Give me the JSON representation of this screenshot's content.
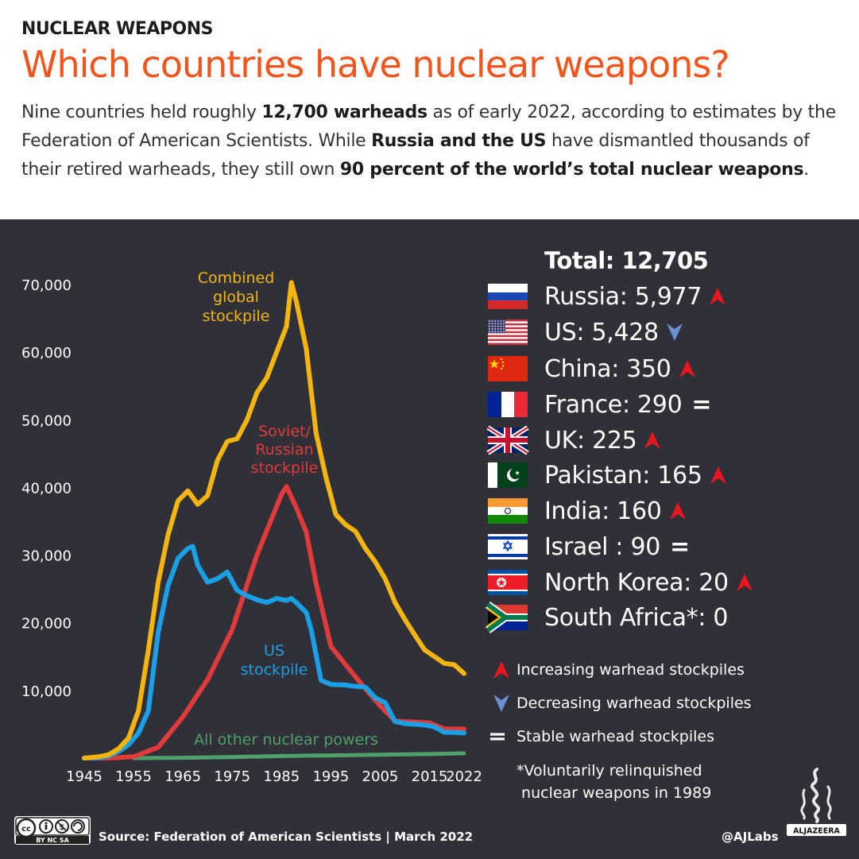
{
  "header": {
    "kicker": "NUCLEAR WEAPONS",
    "title": "Which countries have nuclear weapons?",
    "intro": [
      {
        "t": "Nine countries held roughly "
      },
      {
        "t": "12,700 warheads",
        "b": true
      },
      {
        "t": " as of early 2022, according to estimates by the Federation of American Scientists. While "
      },
      {
        "t": "Russia and the US",
        "b": true
      },
      {
        "t": " have dismantled thousands of their retired warheads, they still own "
      },
      {
        "t": "90 percent of the world’s total nuclear weapons",
        "b": true
      },
      {
        "t": "."
      }
    ]
  },
  "colors": {
    "accent": "#f2541b",
    "panel_bg": "#2f3038",
    "combined": "#f5b50f",
    "russia": "#e03a3a",
    "us": "#1aa0e6",
    "others": "#4fa06a",
    "up_arrow": "#e8171f",
    "down_arrow": "#6b8fcf"
  },
  "legend": {
    "total_label": "Total: 12,705",
    "countries": [
      {
        "label": "Russia: 5,977",
        "trend": "up",
        "flag": "russia-flag"
      },
      {
        "label": "US: 5,428",
        "trend": "down",
        "flag": "us-flag"
      },
      {
        "label": "China: 350",
        "trend": "up",
        "flag": "china-flag"
      },
      {
        "label": "France: 290",
        "trend": "stable",
        "flag": "france-flag"
      },
      {
        "label": "UK: 225",
        "trend": "up",
        "flag": "uk-flag"
      },
      {
        "label": "Pakistan: 165",
        "trend": "up",
        "flag": "pakistan-flag"
      },
      {
        "label": "India: 160",
        "trend": "up",
        "flag": "india-flag"
      },
      {
        "label": "Israel : 90",
        "trend": "stable",
        "flag": "israel-flag"
      },
      {
        "label": "North Korea: 20",
        "trend": "up",
        "flag": "north-korea-flag"
      },
      {
        "label": "South Africa*: 0",
        "trend": "none",
        "flag": "south-africa-flag"
      }
    ],
    "key": [
      {
        "symbol": "up-arrow-icon",
        "label": "Increasing warhead stockpiles"
      },
      {
        "symbol": "down-arrow-icon",
        "label": "Decreasing warhead stockpiles"
      },
      {
        "symbol": "equals-icon",
        "label": "Stable warhead stockpiles"
      }
    ],
    "footnote": "*Voluntarily relinquished\n nuclear weapons in 1989"
  },
  "footer": {
    "source": "Source: Federation of American Scientists  |  March 2022",
    "handle": "@AJLabs",
    "logo_text": "ALJAZEERA",
    "license": "BY NC SA"
  },
  "chart_data": {
    "type": "line",
    "title": "",
    "xlabel": "",
    "ylabel": "",
    "x_ticks": [
      1945,
      1955,
      1965,
      1975,
      1985,
      1995,
      2005,
      2015,
      2022
    ],
    "y_ticks": [
      10000,
      20000,
      30000,
      40000,
      50000,
      60000,
      70000
    ],
    "y_tick_labels": [
      "10,000",
      "20,000",
      "30,000",
      "40,000",
      "50,000",
      "60,000",
      "70,000"
    ],
    "xlim": [
      1945,
      2022
    ],
    "ylim": [
      0,
      70000
    ],
    "grid": false,
    "series": [
      {
        "name": "Combined global stockpile",
        "label_lines": [
          "Combined",
          "global",
          "stockpile"
        ],
        "color": "#f5b50f",
        "x": [
          1945,
          1948,
          1950,
          1952,
          1954,
          1956,
          1958,
          1960,
          1962,
          1964,
          1966,
          1968,
          1970,
          1972,
          1974,
          1976,
          1978,
          1980,
          1982,
          1984,
          1986,
          1987,
          1988,
          1990,
          1992,
          1994,
          1996,
          1998,
          2000,
          2002,
          2004,
          2006,
          2008,
          2010,
          2012,
          2014,
          2016,
          2018,
          2020,
          2022
        ],
        "y": [
          0,
          200,
          500,
          1400,
          3000,
          7000,
          16000,
          26000,
          33000,
          38000,
          39500,
          37500,
          38800,
          44000,
          46800,
          47200,
          50000,
          54000,
          56200,
          60000,
          63800,
          70300,
          67500,
          60500,
          48000,
          41500,
          36000,
          34500,
          33500,
          31000,
          29000,
          26500,
          23000,
          20500,
          18200,
          16000,
          15000,
          14000,
          13800,
          12500
        ]
      },
      {
        "name": "Soviet/ Russian stockpile",
        "label_lines": [
          "Soviet/",
          "Russian",
          "stockpile"
        ],
        "color": "#e03a3a",
        "x": [
          1945,
          1950,
          1955,
          1960,
          1965,
          1970,
          1975,
          1980,
          1985,
          1986,
          1988,
          1990,
          1992,
          1995,
          2000,
          2005,
          2008,
          2010,
          2015,
          2018,
          2020,
          2022
        ],
        "y": [
          0,
          5,
          200,
          1600,
          6100,
          11600,
          19000,
          30000,
          39000,
          40150,
          37000,
          33400,
          25800,
          16500,
          12000,
          7700,
          5500,
          5400,
          5200,
          4300,
          4300,
          4300
        ]
      },
      {
        "name": "US stockpile",
        "label_lines": [
          "US",
          "stockpile"
        ],
        "color": "#1aa0e6",
        "x": [
          1945,
          1948,
          1950,
          1952,
          1954,
          1956,
          1958,
          1960,
          1962,
          1964,
          1966,
          1967,
          1968,
          1970,
          1972,
          1974,
          1976,
          1978,
          1980,
          1982,
          1984,
          1986,
          1987,
          1988,
          1990,
          1991,
          1993,
          1995,
          1998,
          2000,
          2002,
          2004,
          2006,
          2008,
          2010,
          2014,
          2016,
          2018,
          2020,
          2022
        ],
        "y": [
          0,
          50,
          300,
          1000,
          2000,
          3700,
          7000,
          18600,
          25500,
          29500,
          31000,
          31300,
          28500,
          26000,
          26500,
          27500,
          24800,
          24000,
          23400,
          23000,
          23600,
          23300,
          23600,
          23000,
          21500,
          19000,
          11500,
          10900,
          10800,
          10600,
          10500,
          8900,
          8200,
          5400,
          5100,
          4900,
          4600,
          3800,
          3800,
          3700
        ]
      },
      {
        "name": "All other nuclear powers",
        "label_lines": [
          "All other nuclear powers"
        ],
        "color": "#4fa06a",
        "x": [
          1955,
          1965,
          1975,
          1985,
          1995,
          2005,
          2015,
          2022
        ],
        "y": [
          0,
          50,
          150,
          300,
          400,
          500,
          600,
          700
        ]
      }
    ]
  }
}
